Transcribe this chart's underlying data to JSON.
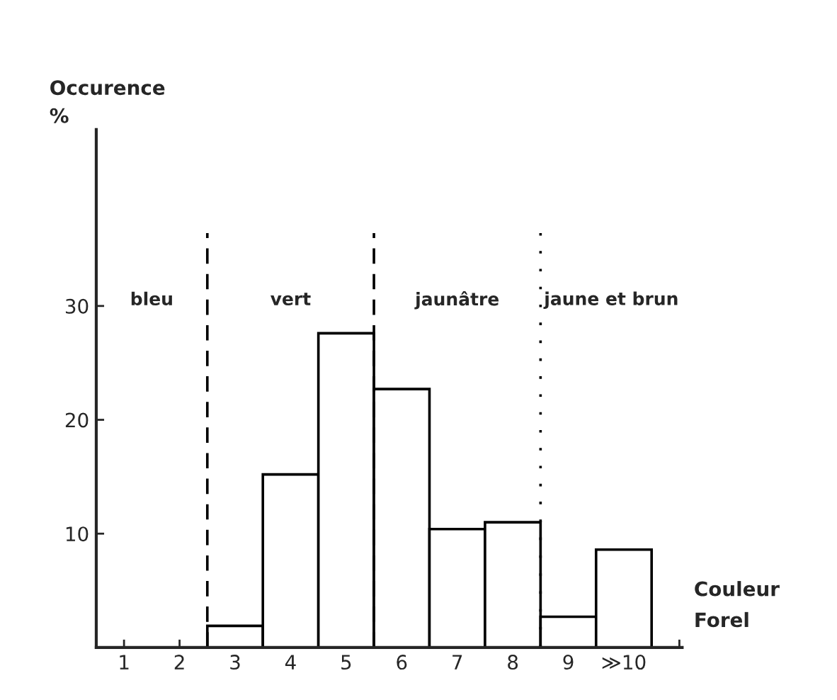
{
  "chart_data": {
    "type": "histogram",
    "xlabel": "Couleur\nForel",
    "ylabel": "Occurence\n%",
    "bins": [
      0.5,
      1.5,
      2.5,
      3.5,
      4.5,
      5.5,
      6.5,
      7.5,
      8.5,
      9.5,
      10.5
    ],
    "values": [
      0,
      0,
      1.9,
      15.2,
      27.6,
      22.7,
      10.4,
      11.0,
      2.7,
      8.6
    ],
    "color": "#ffffff",
    "xlim": [
      0.5,
      11.05
    ],
    "xticks": [
      1,
      2,
      3,
      4,
      5,
      6,
      7,
      8,
      9,
      {
        "value": 10,
        "label": "≫10"
      },
      {
        "value": 11,
        "label": null
      }
    ],
    "ylim": [
      0,
      45.5
    ],
    "yticks": [
      {
        "value": 0,
        "label": null
      },
      10,
      20,
      30
    ],
    "ref_lines": [
      {
        "axis": "x",
        "value": 2.5,
        "line_style": "dashed"
      },
      {
        "axis": "x",
        "value": 5.5,
        "line_style": "dashed"
      },
      {
        "axis": "x",
        "value": 8.5,
        "line_style": "dotted"
      }
    ],
    "annotations": [
      "bleu",
      "vert",
      "jaunâtre",
      "jaune et brun"
    ],
    "grid": false
  }
}
